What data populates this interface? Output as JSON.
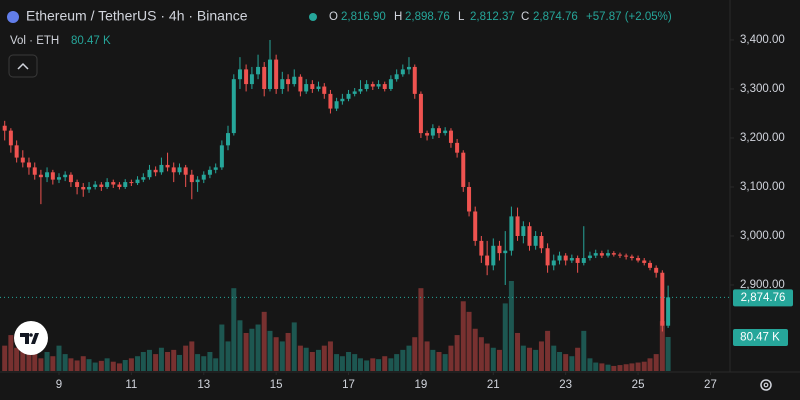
{
  "header": {
    "symbol": "Ethereum / TetherUS · 4h · Binance",
    "o_label": "O",
    "open": "2,816.90",
    "h_label": "H",
    "high": "2,898.76",
    "l_label": "L",
    "low": "2,812.37",
    "c_label": "C",
    "close": "2,874.76",
    "change": "+57.87 (+2.05%)",
    "vol_label": "Vol · ETH",
    "volume": "80.47 K"
  },
  "chart_data": {
    "type": "candlestick",
    "x": [
      7.5,
      7.67,
      7.83,
      8,
      8.17,
      8.33,
      8.5,
      8.67,
      8.83,
      9,
      9.17,
      9.33,
      9.5,
      9.67,
      9.83,
      10,
      10.17,
      10.33,
      10.5,
      10.67,
      10.83,
      11,
      11.17,
      11.33,
      11.5,
      11.67,
      11.83,
      12,
      12.17,
      12.33,
      12.5,
      12.67,
      12.83,
      13,
      13.17,
      13.33,
      13.5,
      13.67,
      13.83,
      14,
      14.17,
      14.33,
      14.5,
      14.67,
      14.83,
      15,
      15.17,
      15.33,
      15.5,
      15.67,
      15.83,
      16,
      16.17,
      16.33,
      16.5,
      16.67,
      16.83,
      17,
      17.17,
      17.33,
      17.5,
      17.67,
      17.83,
      18,
      18.17,
      18.33,
      18.5,
      18.67,
      18.83,
      19,
      19.17,
      19.33,
      19.5,
      19.67,
      19.83,
      20,
      20.17,
      20.33,
      20.5,
      20.67,
      20.83,
      21,
      21.17,
      21.33,
      21.5,
      21.67,
      21.83,
      22,
      22.17,
      22.33,
      22.5,
      22.67,
      22.83,
      23,
      23.17,
      23.33,
      23.5,
      23.67,
      23.83,
      24,
      24.17,
      24.33,
      24.5,
      24.67,
      24.83,
      25,
      25.17,
      25.33,
      25.5,
      25.67,
      25.83
    ],
    "ohlc": [
      [
        3225,
        3235,
        3195,
        3215
      ],
      [
        3215,
        3220,
        3170,
        3185
      ],
      [
        3185,
        3195,
        3150,
        3160
      ],
      [
        3160,
        3175,
        3140,
        3150
      ],
      [
        3150,
        3160,
        3125,
        3140
      ],
      [
        3140,
        3150,
        3115,
        3125
      ],
      [
        3125,
        3135,
        3065,
        3120
      ],
      [
        3120,
        3140,
        3110,
        3130
      ],
      [
        3130,
        3135,
        3105,
        3115
      ],
      [
        3115,
        3128,
        3108,
        3120
      ],
      [
        3120,
        3132,
        3112,
        3125
      ],
      [
        3125,
        3130,
        3100,
        3110
      ],
      [
        3110,
        3115,
        3085,
        3100
      ],
      [
        3100,
        3108,
        3080,
        3095
      ],
      [
        3095,
        3110,
        3088,
        3100
      ],
      [
        3100,
        3112,
        3095,
        3105
      ],
      [
        3105,
        3110,
        3092,
        3100
      ],
      [
        3100,
        3118,
        3096,
        3110
      ],
      [
        3110,
        3115,
        3098,
        3105
      ],
      [
        3105,
        3110,
        3095,
        3100
      ],
      [
        3100,
        3116,
        3096,
        3110
      ],
      [
        3110,
        3115,
        3102,
        3108
      ],
      [
        3108,
        3122,
        3104,
        3115
      ],
      [
        3115,
        3128,
        3110,
        3120
      ],
      [
        3120,
        3145,
        3115,
        3135
      ],
      [
        3135,
        3142,
        3122,
        3130
      ],
      [
        3130,
        3160,
        3125,
        3145
      ],
      [
        3145,
        3170,
        3132,
        3140
      ],
      [
        3140,
        3150,
        3110,
        3130
      ],
      [
        3130,
        3148,
        3125,
        3140
      ],
      [
        3140,
        3145,
        3100,
        3125
      ],
      [
        3125,
        3135,
        3075,
        3110
      ],
      [
        3110,
        3122,
        3090,
        3115
      ],
      [
        3115,
        3132,
        3108,
        3125
      ],
      [
        3125,
        3142,
        3118,
        3135
      ],
      [
        3135,
        3148,
        3128,
        3140
      ],
      [
        3140,
        3195,
        3135,
        3185
      ],
      [
        3185,
        3225,
        3175,
        3210
      ],
      [
        3210,
        3330,
        3205,
        3320
      ],
      [
        3320,
        3365,
        3300,
        3340
      ],
      [
        3340,
        3350,
        3295,
        3310
      ],
      [
        3310,
        3345,
        3300,
        3330
      ],
      [
        3330,
        3370,
        3320,
        3345
      ],
      [
        3345,
        3355,
        3285,
        3300
      ],
      [
        3300,
        3400,
        3295,
        3360
      ],
      [
        3360,
        3370,
        3290,
        3300
      ],
      [
        3300,
        3335,
        3290,
        3320
      ],
      [
        3320,
        3330,
        3295,
        3310
      ],
      [
        3310,
        3340,
        3305,
        3325
      ],
      [
        3325,
        3330,
        3285,
        3295
      ],
      [
        3295,
        3320,
        3290,
        3310
      ],
      [
        3310,
        3318,
        3292,
        3300
      ],
      [
        3300,
        3315,
        3295,
        3305
      ],
      [
        3305,
        3312,
        3280,
        3290
      ],
      [
        3290,
        3298,
        3250,
        3260
      ],
      [
        3260,
        3282,
        3255,
        3275
      ],
      [
        3275,
        3290,
        3268,
        3280
      ],
      [
        3280,
        3298,
        3275,
        3290
      ],
      [
        3290,
        3302,
        3285,
        3295
      ],
      [
        3295,
        3318,
        3290,
        3300
      ],
      [
        3300,
        3318,
        3295,
        3310
      ],
      [
        3310,
        3315,
        3298,
        3305
      ],
      [
        3305,
        3318,
        3300,
        3310
      ],
      [
        3310,
        3315,
        3295,
        3300
      ],
      [
        3300,
        3328,
        3296,
        3320
      ],
      [
        3320,
        3340,
        3315,
        3330
      ],
      [
        3330,
        3350,
        3325,
        3340
      ],
      [
        3340,
        3365,
        3330,
        3345
      ],
      [
        3345,
        3350,
        3280,
        3290
      ],
      [
        3290,
        3295,
        3200,
        3210
      ],
      [
        3210,
        3215,
        3195,
        3205
      ],
      [
        3205,
        3228,
        3198,
        3220
      ],
      [
        3220,
        3225,
        3200,
        3210
      ],
      [
        3210,
        3222,
        3205,
        3215
      ],
      [
        3215,
        3220,
        3180,
        3190
      ],
      [
        3190,
        3198,
        3160,
        3170
      ],
      [
        3170,
        3175,
        3090,
        3100
      ],
      [
        3100,
        3110,
        3040,
        3050
      ],
      [
        3050,
        3060,
        2980,
        2990
      ],
      [
        2990,
        3000,
        2945,
        2960
      ],
      [
        2960,
        2990,
        2920,
        2940
      ],
      [
        2940,
        2995,
        2930,
        2980
      ],
      [
        2980,
        2990,
        2950,
        2965
      ],
      [
        2965,
        3010,
        2900,
        2970
      ],
      [
        2970,
        3060,
        2960,
        3040
      ],
      [
        3040,
        3058,
        2990,
        3000
      ],
      [
        3000,
        3030,
        2985,
        3020
      ],
      [
        3020,
        3028,
        2970,
        2980
      ],
      [
        2980,
        3010,
        2972,
        3000
      ],
      [
        3000,
        3008,
        2965,
        2975
      ],
      [
        2975,
        2985,
        2925,
        2940
      ],
      [
        2940,
        2962,
        2930,
        2950
      ],
      [
        2950,
        2968,
        2942,
        2960
      ],
      [
        2960,
        2965,
        2940,
        2950
      ],
      [
        2950,
        2962,
        2945,
        2955
      ],
      [
        2955,
        2960,
        2925,
        2945
      ],
      [
        2945,
        3020,
        2940,
        2955
      ],
      [
        2955,
        2968,
        2950,
        2960
      ],
      [
        2960,
        2972,
        2955,
        2965
      ],
      [
        2965,
        2970,
        2955,
        2960
      ],
      [
        2960,
        2972,
        2956,
        2965
      ],
      [
        2965,
        2969,
        2958,
        2962
      ],
      [
        2962,
        2966,
        2955,
        2960
      ],
      [
        2960,
        2964,
        2952,
        2958
      ],
      [
        2958,
        2962,
        2950,
        2955
      ],
      [
        2955,
        2960,
        2946,
        2950
      ],
      [
        2950,
        2955,
        2940,
        2945
      ],
      [
        2945,
        2950,
        2930,
        2935
      ],
      [
        2935,
        2940,
        2915,
        2925
      ],
      [
        2925,
        2930,
        2805,
        2816.9
      ],
      [
        2816.9,
        2898.76,
        2812.37,
        2874.76
      ]
    ],
    "volume": [
      60,
      85,
      55,
      90,
      45,
      50,
      30,
      45,
      35,
      60,
      40,
      30,
      25,
      35,
      28,
      20,
      24,
      30,
      22,
      18,
      26,
      30,
      35,
      45,
      50,
      40,
      55,
      45,
      50,
      38,
      60,
      70,
      40,
      35,
      45,
      30,
      110,
      70,
      196,
      120,
      90,
      100,
      110,
      140,
      95,
      80,
      70,
      90,
      115,
      60,
      55,
      45,
      50,
      60,
      70,
      40,
      35,
      45,
      40,
      30,
      25,
      30,
      28,
      35,
      30,
      40,
      50,
      60,
      80,
      196,
      70,
      50,
      45,
      40,
      60,
      85,
      165,
      140,
      100,
      80,
      65,
      55,
      50,
      160,
      213,
      90,
      60,
      55,
      50,
      70,
      95,
      60,
      45,
      40,
      35,
      55,
      95,
      30,
      20,
      18,
      15,
      12,
      14,
      16,
      18,
      20,
      22,
      30,
      40,
      118,
      80.47
    ],
    "up_color": "#26a69a",
    "down_color": "#ef5350",
    "xlim": [
      7.37,
      27.54
    ],
    "xticks": [
      9,
      11,
      13,
      15,
      17,
      19,
      21,
      23,
      25,
      27
    ],
    "ylim": [
      2726.5,
      3481.6
    ],
    "yticks": [
      {
        "value": 3400,
        "label": "3,400.00"
      },
      {
        "value": 3300,
        "label": "3,300.00"
      },
      {
        "value": 3200,
        "label": "3,200.00"
      },
      {
        "value": 3100,
        "label": "3,100.00"
      },
      {
        "value": 3000,
        "label": "3,000.00"
      },
      {
        "value": 2900,
        "label": "2,900.00"
      }
    ],
    "grid": false
  }
}
